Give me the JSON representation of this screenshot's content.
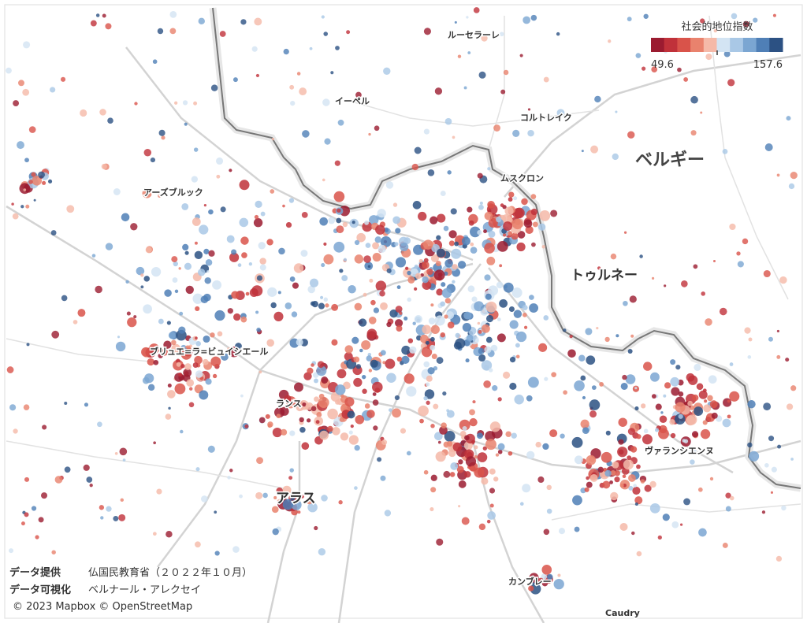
{
  "legend": {
    "title": "社会的地位指数",
    "min": 49.6,
    "max": 157.6,
    "colors": [
      "#9b1b30",
      "#c0313a",
      "#d9534a",
      "#e9826d",
      "#f5b9a8",
      "#d3e4f3",
      "#a9c8e6",
      "#7ba6d2",
      "#4f7fb6",
      "#2c5183"
    ]
  },
  "places": [
    "ルーセラーレ",
    "イーペル",
    "コルトレイク",
    "ベルギー",
    "ムスクロン",
    "トゥルネー",
    "アーズブルック",
    "ブリュエ=ラ=ビュイシエール",
    "ランス",
    "ヴァランシエンヌ",
    "アラス",
    "カンブレー",
    "Caudry"
  ],
  "credits": {
    "data_label": "データ提供",
    "data_source": "仏国民教育省（２０２２年１０月）",
    "viz_label": "データ可視化",
    "viz_author": "ベルナール・アレクセイ",
    "attribution": "© 2023 Mapbox © OpenStreetMap"
  }
}
